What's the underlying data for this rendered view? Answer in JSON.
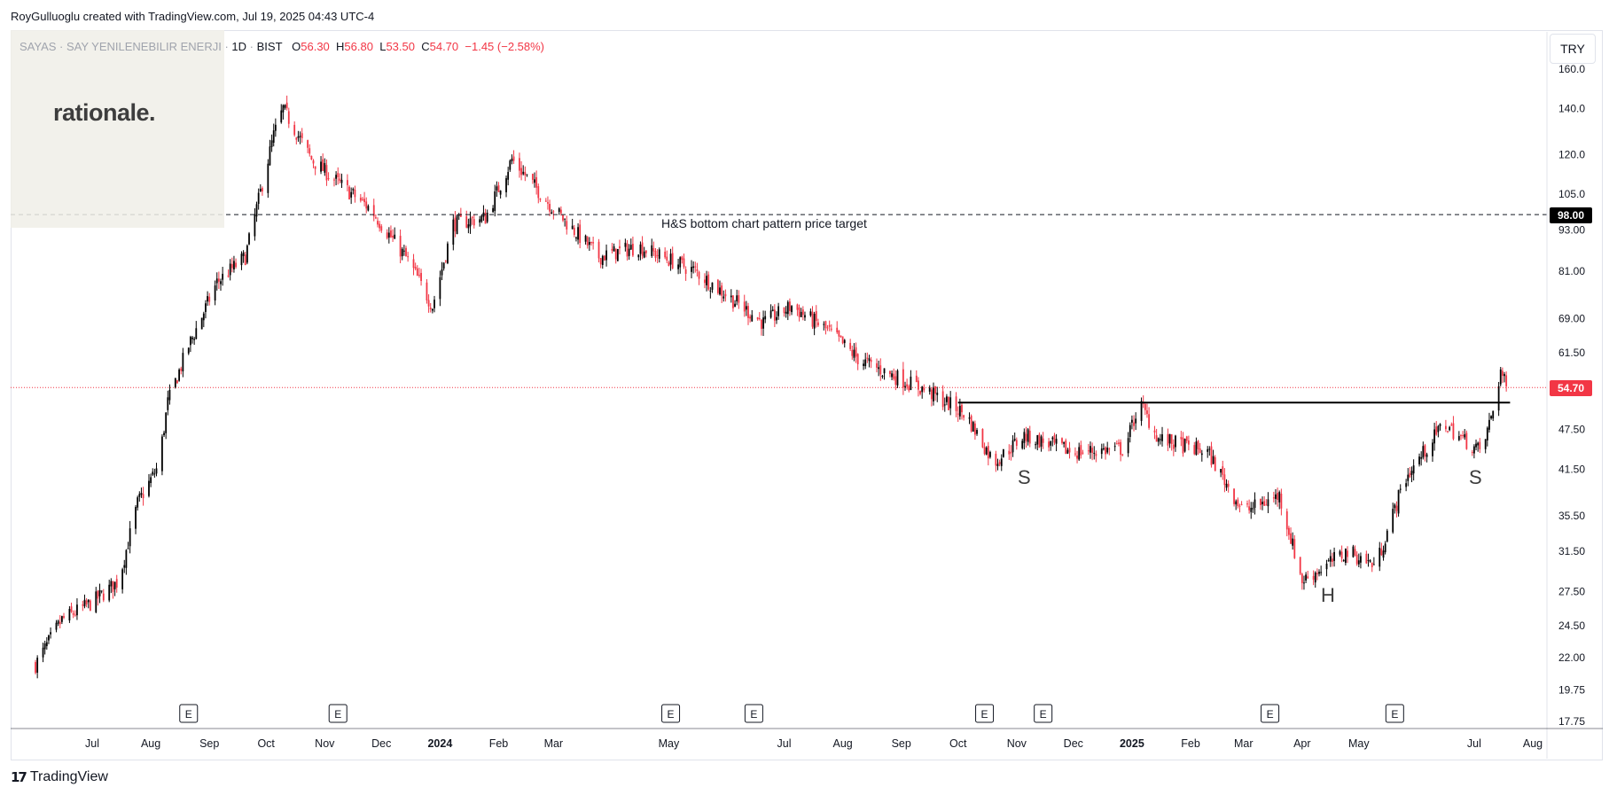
{
  "credit": "RoyGulluoglu created with TradingView.com, Jul 19, 2025 04:43 UTC-4",
  "legend": {
    "symbol": "SAYAS · SAY YENILENEBILIR ENERJI",
    "interval": "1D",
    "exchange": "BIST",
    "o_label": "O",
    "o": "56.30",
    "h_label": "H",
    "h": "56.80",
    "l_label": "L",
    "l": "53.50",
    "c_label": "C",
    "c": "54.70",
    "change": "−1.45 (−2.58%)"
  },
  "overlay_logo": "rationale.",
  "currency_button": "TRY",
  "brand": "TradingView",
  "colors": {
    "up": "#000000",
    "down": "#f23645",
    "grid": "#ffffff",
    "axis_text": "#131722",
    "last_price": "#f23645",
    "target_tag": "#000000"
  },
  "chart_data": {
    "type": "candlestick",
    "title": "",
    "xlabel": "",
    "ylabel": "",
    "y_scale": "log",
    "ylim": [
      17.0,
      165.0
    ],
    "y_ticks": [
      "160.0",
      "140.0",
      "120.0",
      "105.0",
      "93.00",
      "81.00",
      "69.00",
      "61.50",
      "47.50",
      "41.50",
      "35.50",
      "31.50",
      "27.50",
      "24.50",
      "22.00",
      "19.75",
      "17.75"
    ],
    "x_ticks": [
      "Jul",
      "Aug",
      "Sep",
      "Oct",
      "Nov",
      "Dec",
      "2024",
      "Feb",
      "Mar",
      "May",
      "Jul",
      "Aug",
      "Sep",
      "Oct",
      "Nov",
      "Dec",
      "2025",
      "Feb",
      "Mar",
      "Apr",
      "May",
      "Jul",
      "Aug"
    ],
    "x_tick_dates": [
      "2023-07-01",
      "2023-08-01",
      "2023-09-01",
      "2023-10-01",
      "2023-11-01",
      "2023-12-01",
      "2024-01-01",
      "2024-02-01",
      "2024-03-01",
      "2024-05-01",
      "2024-07-01",
      "2024-08-01",
      "2024-09-01",
      "2024-10-01",
      "2024-11-01",
      "2024-12-01",
      "2025-01-01",
      "2025-02-01",
      "2025-03-01",
      "2025-04-01",
      "2025-05-01",
      "2025-07-01",
      "2025-08-01"
    ],
    "last_price": "54.70",
    "price_path": [
      {
        "date": "2023-06-01",
        "close": 21.5
      },
      {
        "date": "2023-06-15",
        "close": 25.0
      },
      {
        "date": "2023-07-01",
        "close": 26.5
      },
      {
        "date": "2023-07-15",
        "close": 28.5
      },
      {
        "date": "2023-07-25",
        "close": 37.0
      },
      {
        "date": "2023-08-05",
        "close": 42.0
      },
      {
        "date": "2023-08-10",
        "close": 52.0
      },
      {
        "date": "2023-08-20",
        "close": 62.0
      },
      {
        "date": "2023-09-05",
        "close": 78.0
      },
      {
        "date": "2023-09-20",
        "close": 85.0
      },
      {
        "date": "2023-10-05",
        "close": 128.0
      },
      {
        "date": "2023-10-10",
        "close": 140.0
      },
      {
        "date": "2023-10-25",
        "close": 118.0
      },
      {
        "date": "2023-11-10",
        "close": 108.0
      },
      {
        "date": "2023-11-25",
        "close": 100.0
      },
      {
        "date": "2023-12-15",
        "close": 84.0
      },
      {
        "date": "2023-12-28",
        "close": 72.0
      },
      {
        "date": "2024-01-08",
        "close": 95.0
      },
      {
        "date": "2024-01-25",
        "close": 97.0
      },
      {
        "date": "2024-02-08",
        "close": 118.0
      },
      {
        "date": "2024-03-01",
        "close": 100.0
      },
      {
        "date": "2024-03-25",
        "close": 85.0
      },
      {
        "date": "2024-04-15",
        "close": 88.0
      },
      {
        "date": "2024-05-15",
        "close": 81.0
      },
      {
        "date": "2024-06-20",
        "close": 68.0
      },
      {
        "date": "2024-07-05",
        "close": 72.0
      },
      {
        "date": "2024-07-25",
        "close": 66.0
      },
      {
        "date": "2024-08-10",
        "close": 60.0
      },
      {
        "date": "2024-09-15",
        "close": 54.0
      },
      {
        "date": "2024-10-05",
        "close": 50.0
      },
      {
        "date": "2024-10-20",
        "close": 42.5
      },
      {
        "date": "2024-11-05",
        "close": 46.5
      },
      {
        "date": "2024-12-01",
        "close": 44.0
      },
      {
        "date": "2024-12-28",
        "close": 44.5
      },
      {
        "date": "2025-01-05",
        "close": 52.0
      },
      {
        "date": "2025-01-15",
        "close": 46.0
      },
      {
        "date": "2025-02-10",
        "close": 44.0
      },
      {
        "date": "2025-03-01",
        "close": 36.0
      },
      {
        "date": "2025-03-20",
        "close": 38.0
      },
      {
        "date": "2025-04-01",
        "close": 28.5
      },
      {
        "date": "2025-04-25",
        "close": 31.5
      },
      {
        "date": "2025-05-10",
        "close": 30.0
      },
      {
        "date": "2025-05-25",
        "close": 40.0
      },
      {
        "date": "2025-06-15",
        "close": 48.5
      },
      {
        "date": "2025-06-25",
        "close": 46.0
      },
      {
        "date": "2025-07-05",
        "close": 44.0
      },
      {
        "date": "2025-07-12",
        "close": 52.0
      },
      {
        "date": "2025-07-15",
        "close": 58.0
      },
      {
        "date": "2025-07-18",
        "close": 54.7
      }
    ],
    "annotations": [
      {
        "text": "H&S bottom chart pattern price target",
        "type": "dashed-line",
        "price": 98.0,
        "tag": "98.00"
      },
      {
        "text": "",
        "type": "neckline",
        "price": 52.0,
        "from": "2024-10-01",
        "to": "2025-07-20"
      },
      {
        "text": "S",
        "date": "2024-10-28"
      },
      {
        "text": "H",
        "date": "2025-04-10"
      },
      {
        "text": "S",
        "date": "2025-07-05"
      }
    ],
    "earnings_marker_label": "E",
    "earnings_dates": [
      "2023-08-21",
      "2023-11-08",
      "2024-05-02",
      "2024-06-15",
      "2024-10-15",
      "2024-11-15",
      "2025-03-15",
      "2025-05-20"
    ],
    "grid": false
  }
}
